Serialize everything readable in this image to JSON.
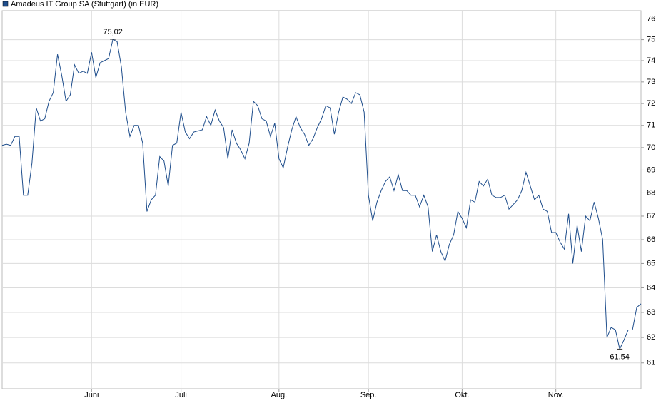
{
  "chart_data": {
    "type": "line",
    "title": "Amadeus IT Group SA (Stuttgart) (in EUR)",
    "categories": [
      null,
      null,
      null,
      null,
      null,
      null,
      null,
      null,
      null,
      null,
      null,
      null,
      null,
      null,
      null,
      null,
      null,
      null,
      null,
      null,
      null,
      "Juni",
      null,
      null,
      null,
      null,
      null,
      null,
      null,
      null,
      null,
      null,
      null,
      null,
      null,
      null,
      null,
      null,
      null,
      null,
      null,
      null,
      "Juli",
      null,
      null,
      null,
      null,
      null,
      null,
      null,
      null,
      null,
      null,
      null,
      null,
      null,
      null,
      null,
      null,
      null,
      null,
      null,
      null,
      null,
      null,
      "Aug.",
      null,
      null,
      null,
      null,
      null,
      null,
      null,
      null,
      null,
      null,
      null,
      null,
      null,
      null,
      null,
      null,
      null,
      null,
      null,
      null,
      "Sep.",
      null,
      null,
      null,
      null,
      null,
      null,
      null,
      null,
      null,
      null,
      null,
      null,
      null,
      null,
      null,
      null,
      null,
      null,
      null,
      null,
      null,
      "Okt.",
      null,
      null,
      null,
      null,
      null,
      null,
      null,
      null,
      null,
      null,
      null,
      null,
      null,
      null,
      null,
      null,
      null,
      null,
      null,
      null,
      null,
      "Nov.",
      null,
      null,
      null,
      null,
      null,
      null,
      null,
      null,
      null,
      null,
      null,
      null,
      null,
      null,
      null,
      null,
      null,
      null,
      null,
      null
    ],
    "series": [
      {
        "name": "Amadeus IT Group SA (Stuttgart) (in EUR)",
        "color": "#1f4e8c",
        "values": [
          70.1,
          70.15,
          70.1,
          70.5,
          70.5,
          67.9,
          67.9,
          69.3,
          71.8,
          71.2,
          71.3,
          72.1,
          72.5,
          74.3,
          73.3,
          72.1,
          72.4,
          73.8,
          73.4,
          73.5,
          73.4,
          74.4,
          73.2,
          73.9,
          74.0,
          74.1,
          75.02,
          74.9,
          73.7,
          71.6,
          70.5,
          71.0,
          71.0,
          70.2,
          67.2,
          67.7,
          67.9,
          69.6,
          69.4,
          68.3,
          70.1,
          70.2,
          71.6,
          70.7,
          70.4,
          70.7,
          70.75,
          70.8,
          71.4,
          71.0,
          71.7,
          71.2,
          70.9,
          69.5,
          70.8,
          70.2,
          69.9,
          69.5,
          70.2,
          72.1,
          71.9,
          71.3,
          71.2,
          70.5,
          71.1,
          69.5,
          69.1,
          70.0,
          70.8,
          71.4,
          70.9,
          70.6,
          70.1,
          70.4,
          70.9,
          71.3,
          71.9,
          71.8,
          70.6,
          71.6,
          72.3,
          72.2,
          72.0,
          72.5,
          72.4,
          71.6,
          67.9,
          66.8,
          67.6,
          68.1,
          68.5,
          68.7,
          68.1,
          68.8,
          68.1,
          68.1,
          67.9,
          67.9,
          67.4,
          67.9,
          67.4,
          65.5,
          66.2,
          65.5,
          65.1,
          65.8,
          66.2,
          67.2,
          66.9,
          66.5,
          67.7,
          67.6,
          68.5,
          68.3,
          68.6,
          67.9,
          67.8,
          67.8,
          67.9,
          67.3,
          67.5,
          67.7,
          68.1,
          68.9,
          68.3,
          67.7,
          67.9,
          67.3,
          67.2,
          66.3,
          66.3,
          65.9,
          65.6,
          67.1,
          65.0,
          66.6,
          65.5,
          67.0,
          66.8,
          67.6,
          66.9,
          66.0,
          62.0,
          62.4,
          62.3,
          61.54,
          61.9,
          62.3,
          62.3,
          63.2,
          63.35
        ],
        "value_labels": [
          null,
          null,
          null,
          null,
          null,
          null,
          null,
          null,
          null,
          null,
          null,
          null,
          null,
          null,
          null,
          null,
          null,
          null,
          null,
          null,
          null,
          null,
          null,
          null,
          null,
          null,
          "75,02",
          null,
          null,
          null,
          null,
          null,
          null,
          null,
          null,
          null,
          null,
          null,
          null,
          null,
          null,
          null,
          null,
          null,
          null,
          null,
          null,
          null,
          null,
          null,
          null,
          null,
          null,
          null,
          null,
          null,
          null,
          null,
          null,
          null,
          null,
          null,
          null,
          null,
          null,
          null,
          null,
          null,
          null,
          null,
          null,
          null,
          null,
          null,
          null,
          null,
          null,
          null,
          null,
          null,
          null,
          null,
          null,
          null,
          null,
          null,
          null,
          null,
          null,
          null,
          null,
          null,
          null,
          null,
          null,
          null,
          null,
          null,
          null,
          null,
          null,
          null,
          null,
          null,
          null,
          null,
          null,
          null,
          null,
          null,
          null,
          null,
          null,
          null,
          null,
          null,
          null,
          null,
          null,
          null,
          null,
          null,
          null,
          null,
          null,
          null,
          null,
          null,
          null,
          null,
          null,
          null,
          null,
          null,
          null,
          null,
          null,
          null,
          null,
          null,
          null,
          null,
          null,
          null,
          null,
          "61,54",
          null,
          null,
          null,
          null,
          null
        ]
      }
    ],
    "ylim": [
      60,
      76.4
    ],
    "yticks": [
      61,
      62,
      63,
      64,
      65,
      66,
      67,
      68,
      69,
      70,
      71,
      72,
      73,
      74,
      75,
      76
    ],
    "log_scale": true,
    "grid": true
  }
}
